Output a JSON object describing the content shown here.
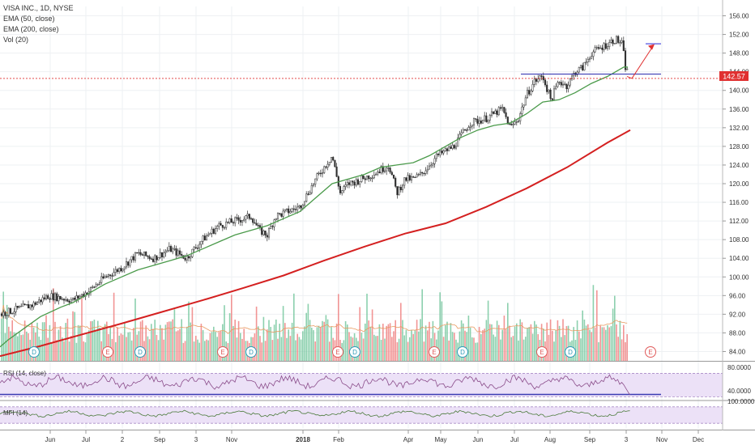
{
  "chart_data": {
    "type": "line",
    "title": "VISA INC., 1D, NYSE",
    "legend": [
      "EMA (50, close)",
      "EMA (200, close)",
      "Vol (20)"
    ],
    "last_price": "142.57",
    "price_axis": {
      "range": [
        82,
        158
      ],
      "ticks": [
        "156.00",
        "152.00",
        "148.00",
        "144.00",
        "140.00",
        "136.00",
        "132.00",
        "128.00",
        "124.00",
        "120.00",
        "116.00",
        "112.00",
        "108.00",
        "104.00",
        "100.00",
        "96.00",
        "92.00",
        "88.00",
        "84.00"
      ]
    },
    "rsi": {
      "label": "RSI (14, close)",
      "ticks": [
        "80.0000",
        "40.0000"
      ],
      "range": [
        25,
        90
      ],
      "band": [
        30,
        70
      ]
    },
    "mfi": {
      "label": "MFI (14)",
      "ticks": [
        "100.0000"
      ],
      "range": [
        0,
        100
      ],
      "band": [
        20,
        80
      ]
    },
    "time_axis": [
      "Jun",
      "Jul",
      "2",
      "Sep",
      "3",
      "Nov",
      "2018",
      "Feb",
      "Apr",
      "May",
      "Jun",
      "Jul",
      "Aug",
      "Sep",
      "3",
      "Nov",
      "Dec"
    ],
    "series": [
      {
        "name": "EMA (50, close)",
        "color": "#4a9a4a",
        "x": [
          0,
          10,
          30,
          50,
          75,
          90,
          110,
          130,
          150,
          170,
          190,
          210,
          230,
          250,
          270,
          290,
          310,
          330,
          350,
          370,
          390,
          410,
          430,
          450,
          470,
          490,
          510,
          530,
          550,
          570,
          590,
          610,
          630,
          650,
          670,
          690,
          710,
          730,
          750,
          760,
          770,
          775
        ],
        "y": [
          85.0,
          86.5,
          89.0,
          91.5,
          93.5,
          94.5,
          96.5,
          98.5,
          100.0,
          101.5,
          102.5,
          103.5,
          104.5,
          106.0,
          107.5,
          109.0,
          110.0,
          111.0,
          112.5,
          114.0,
          117.0,
          120.0,
          121.0,
          122.0,
          123.5,
          124.0,
          124.5,
          126.0,
          128.0,
          130.0,
          131.5,
          132.5,
          133.0,
          135.0,
          137.5,
          138.0,
          139.5,
          141.5,
          143.0,
          144.0,
          145.0,
          145.0
        ]
      },
      {
        "name": "EMA (200, close)",
        "color": "#d42020",
        "x": [
          0,
          50,
          100,
          150,
          200,
          250,
          300,
          350,
          400,
          450,
          500,
          550,
          600,
          650,
          700,
          750,
          778
        ],
        "y": [
          83.0,
          85.2,
          87.6,
          90.0,
          92.5,
          95.0,
          97.6,
          100.3,
          103.5,
          106.5,
          109.3,
          111.5,
          115.0,
          119.0,
          123.5,
          128.8,
          131.5
        ]
      },
      {
        "name": "Price (close)",
        "color": "#2e2e2e",
        "x": [
          0,
          20,
          40,
          60,
          75,
          90,
          110,
          130,
          150,
          170,
          190,
          210,
          230,
          250,
          270,
          290,
          310,
          320,
          330,
          340,
          355,
          370,
          390,
          410,
          420,
          430,
          440,
          460,
          480,
          490,
          500,
          510,
          520,
          540,
          560,
          580,
          600,
          620,
          630,
          640,
          650,
          660,
          670,
          680,
          690,
          700,
          710,
          720,
          730,
          740,
          750,
          760,
          768,
          772,
          778
        ],
        "y": [
          92.0,
          93.0,
          94.0,
          96.0,
          95.5,
          95.0,
          97.0,
          100.0,
          102.0,
          105.0,
          104.0,
          106.0,
          104.0,
          108.0,
          111.0,
          112.0,
          113.0,
          110.0,
          109.0,
          113.0,
          114.0,
          115.0,
          121.0,
          126.0,
          118.0,
          120.0,
          120.5,
          122.0,
          124.0,
          118.0,
          121.0,
          121.0,
          122.0,
          126.0,
          128.0,
          133.0,
          134.0,
          136.0,
          132.0,
          134.0,
          139.0,
          142.0,
          143.0,
          138.0,
          142.0,
          141.0,
          144.0,
          145.0,
          148.0,
          149.0,
          150.0,
          151.0,
          150.0,
          145.0,
          142.6
        ]
      }
    ],
    "annotations": {
      "horizontal_level": 143.5,
      "target_level": 150.0,
      "dividend_markers": [
        "D",
        "D",
        "D",
        "D",
        "D"
      ],
      "earnings_markers": [
        "E",
        "E",
        "E",
        "E",
        "E",
        "E"
      ]
    },
    "grid": true
  }
}
